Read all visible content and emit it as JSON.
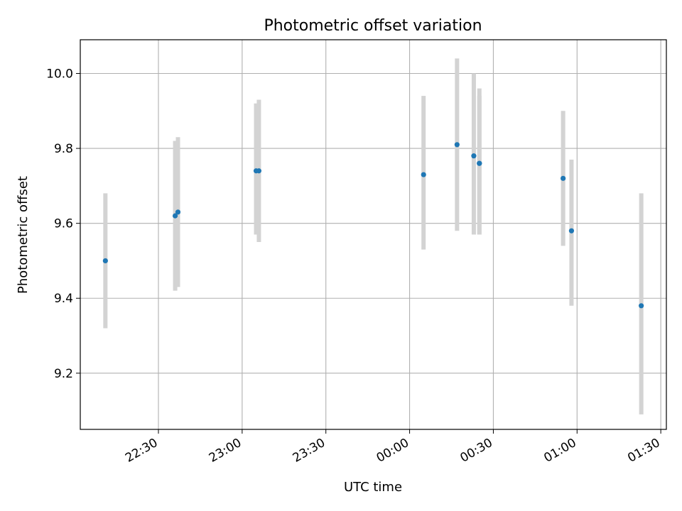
{
  "chart_data": {
    "type": "scatter",
    "title": "Photometric offset variation",
    "xlabel": "UTC time",
    "ylabel": "Photometric offset",
    "grid": true,
    "x_axis": {
      "kind": "time",
      "range": [
        "22:02",
        "01:32"
      ],
      "ticks": [
        "22:30",
        "23:00",
        "23:30",
        "00:00",
        "00:30",
        "01:00",
        "01:30"
      ]
    },
    "ylim": [
      9.05,
      10.09
    ],
    "yticks": [
      "9.2",
      "9.4",
      "9.6",
      "9.8",
      "10.0"
    ],
    "colors": {
      "points": "#1f77b4",
      "errorbars": "#d3d3d3",
      "grid": "#b0b0b0"
    },
    "series": [
      {
        "points": [
          {
            "x": "22:11",
            "y": 9.5,
            "err_low": 9.32,
            "err_high": 9.68
          },
          {
            "x": "22:36",
            "y": 9.62,
            "err_low": 9.42,
            "err_high": 9.82
          },
          {
            "x": "22:37",
            "y": 9.63,
            "err_low": 9.43,
            "err_high": 9.83
          },
          {
            "x": "23:05",
            "y": 9.74,
            "err_low": 9.57,
            "err_high": 9.92
          },
          {
            "x": "23:06",
            "y": 9.74,
            "err_low": 9.55,
            "err_high": 9.93
          },
          {
            "x": "00:05",
            "y": 9.73,
            "err_low": 9.53,
            "err_high": 9.94
          },
          {
            "x": "00:17",
            "y": 9.81,
            "err_low": 9.58,
            "err_high": 10.04
          },
          {
            "x": "00:23",
            "y": 9.78,
            "err_low": 9.57,
            "err_high": 10.0
          },
          {
            "x": "00:25",
            "y": 9.76,
            "err_low": 9.57,
            "err_high": 9.94
          },
          {
            "x": "00:25",
            "y": 9.76,
            "err_low": 9.57,
            "err_high": 9.96
          },
          {
            "x": "00:55",
            "y": 9.72,
            "err_low": 9.54,
            "err_high": 9.9
          },
          {
            "x": "00:58",
            "y": 9.58,
            "err_low": 9.38,
            "err_high": 9.77
          },
          {
            "x": "01:23",
            "y": 9.38,
            "err_low": 9.09,
            "err_high": 9.68
          }
        ]
      }
    ]
  }
}
